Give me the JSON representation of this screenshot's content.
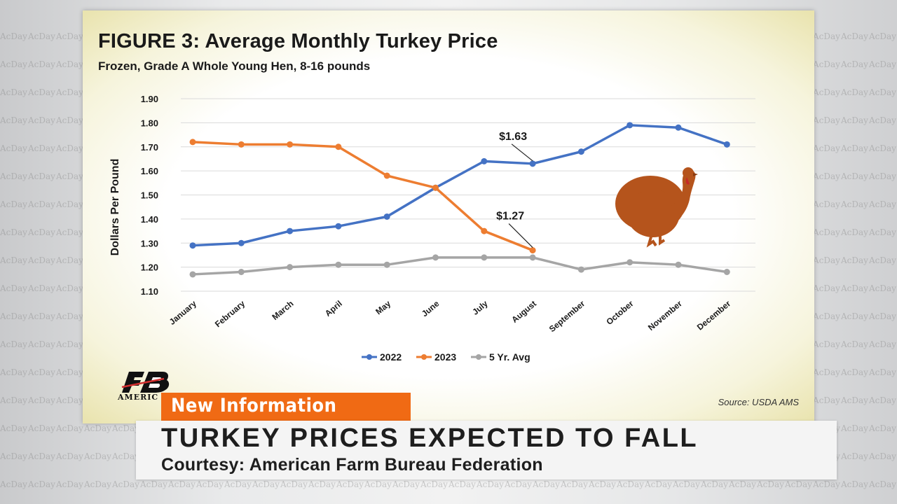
{
  "chart_data": {
    "type": "line",
    "title": "FIGURE  3: Average Monthly Turkey Price",
    "subtitle": "Frozen, Grade A Whole Young Hen, 8-16 pounds",
    "ylabel": "Dollars Per Pound",
    "xlabel": "",
    "ylim": [
      1.1,
      1.9
    ],
    "yticks": [
      "1.90",
      "1.80",
      "1.70",
      "1.60",
      "1.50",
      "1.40",
      "1.30",
      "1.20",
      "1.10"
    ],
    "ytick_values": [
      1.9,
      1.8,
      1.7,
      1.6,
      1.5,
      1.4,
      1.3,
      1.2,
      1.1
    ],
    "categories": [
      "January",
      "February",
      "March",
      "April",
      "May",
      "June",
      "July",
      "August",
      "September",
      "October",
      "November",
      "December"
    ],
    "grid": true,
    "legend_position": "bottom",
    "series": [
      {
        "name": "2022",
        "color": "#4472c4",
        "values": [
          1.29,
          1.3,
          1.35,
          1.37,
          1.41,
          1.53,
          1.64,
          1.63,
          1.68,
          1.79,
          1.78,
          1.71
        ]
      },
      {
        "name": "2023",
        "color": "#ed7d31",
        "values": [
          1.72,
          1.71,
          1.71,
          1.7,
          1.58,
          1.53,
          1.35,
          1.27,
          null,
          null,
          null,
          null
        ]
      },
      {
        "name": "5 Yr. Avg",
        "color": "#a5a5a5",
        "values": [
          1.17,
          1.18,
          1.2,
          1.21,
          1.21,
          1.24,
          1.24,
          1.24,
          1.19,
          1.22,
          1.21,
          1.18
        ]
      }
    ],
    "annotations": [
      {
        "text": "$1.63",
        "series": "2022",
        "category": "August"
      },
      {
        "text": "$1.27",
        "series": "2023",
        "category": "August"
      }
    ],
    "source": "Source: USDA AMS"
  },
  "logo": {
    "text": "AMERIC"
  },
  "watermark": {
    "text": "AcDay"
  },
  "banner": {
    "label": "New Information",
    "color": "#f06a14"
  },
  "lower_third": {
    "headline": "TURKEY PRICES EXPECTED TO FALL",
    "courtesy": "Courtesy: American Farm Bureau Federation"
  },
  "icons": {
    "turkey": "turkey-icon",
    "logo": "fb-logo-icon"
  }
}
